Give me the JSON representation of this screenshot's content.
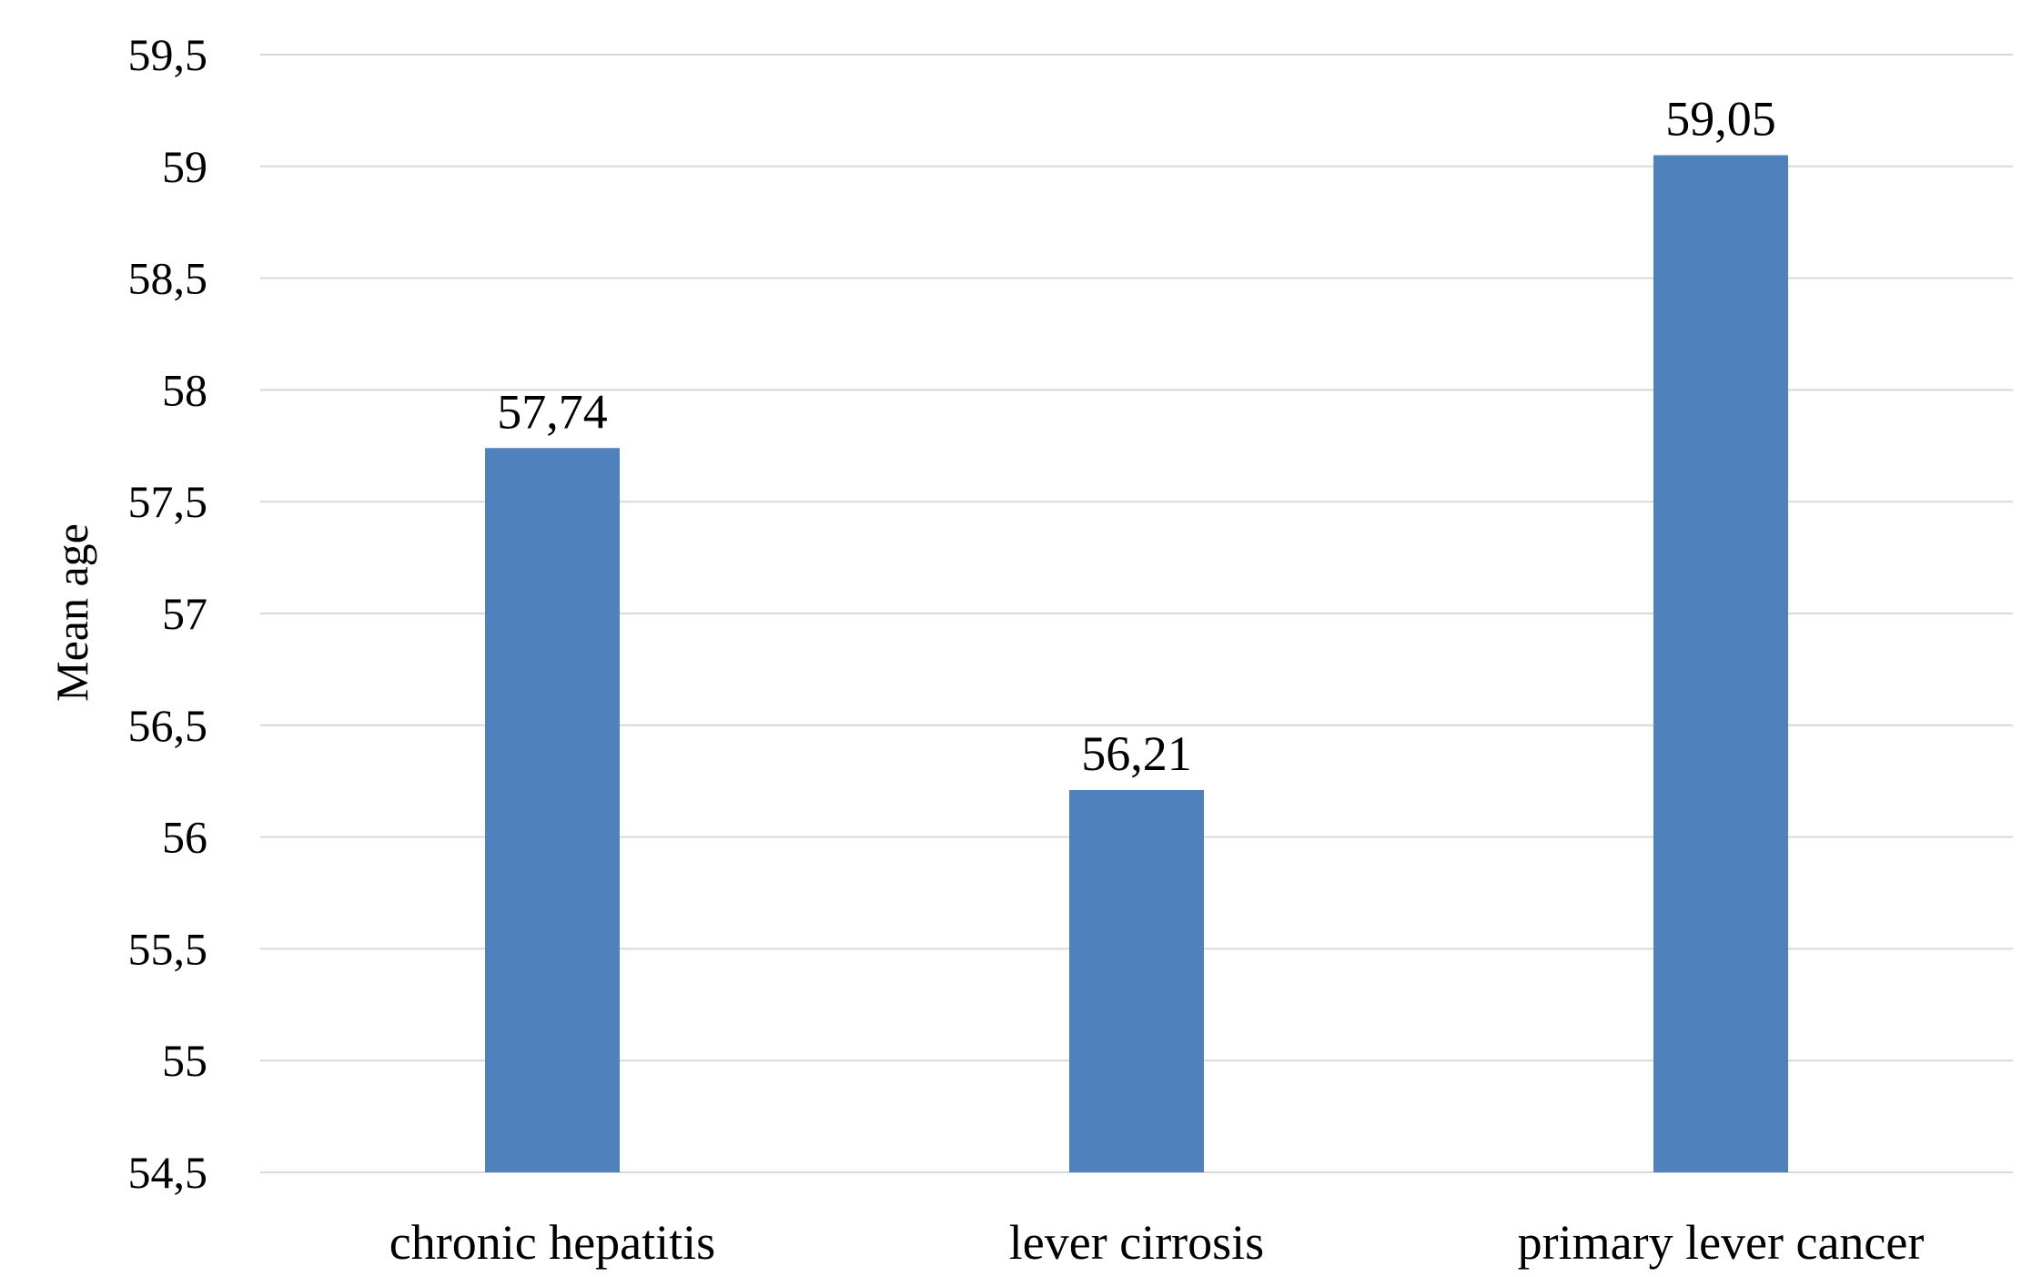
{
  "chart_data": {
    "type": "bar",
    "title": "",
    "xlabel": "",
    "ylabel": "Mean age",
    "categories": [
      "chronic hepatitis",
      "lever cirrosis",
      "primary lever cancer"
    ],
    "values": [
      57.74,
      56.21,
      59.05
    ],
    "value_labels": [
      "57,74",
      "56,21",
      "59,05"
    ],
    "ylim": [
      54.5,
      59.5
    ],
    "y_ticks": [
      54.5,
      55,
      55.5,
      56,
      56.5,
      57,
      57.5,
      58,
      58.5,
      59,
      59.5
    ],
    "y_tick_labels": [
      "54,5",
      "55",
      "55,5",
      "56",
      "56,5",
      "57",
      "57,5",
      "58",
      "58,5",
      "59",
      "59,5"
    ],
    "grid": true,
    "legend": "none",
    "colors": {
      "bar": "#4F81BD",
      "grid": "#D9D9D9",
      "text": "#000000"
    }
  }
}
